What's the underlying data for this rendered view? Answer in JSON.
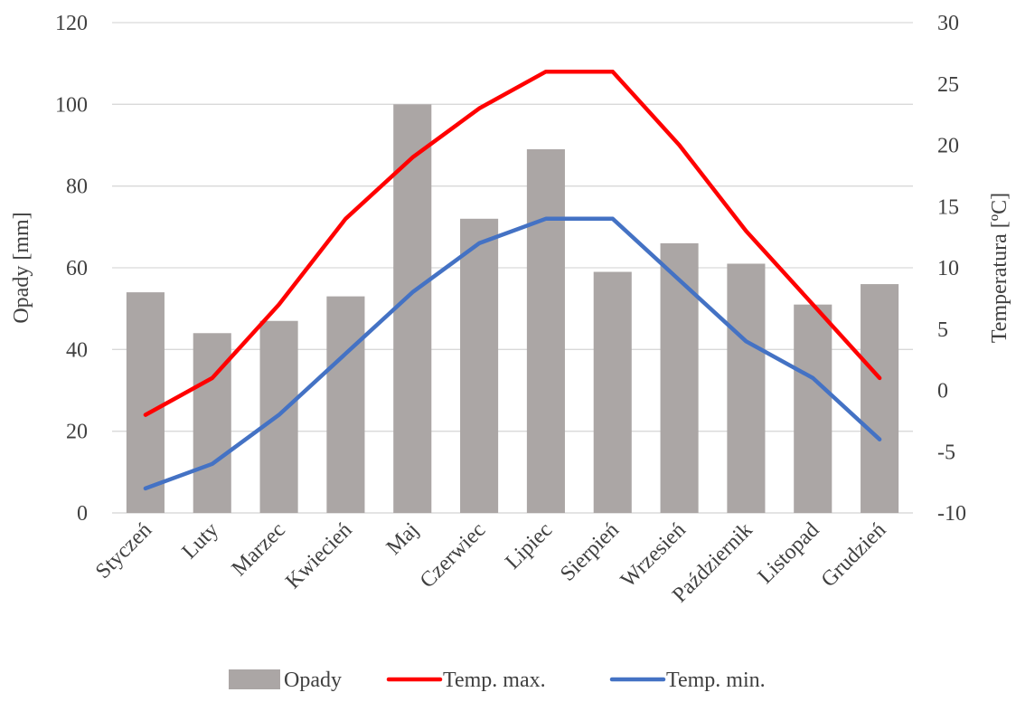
{
  "chart_data": {
    "type": "bar",
    "categories": [
      "Styczeń",
      "Luty",
      "Marzec",
      "Kwiecień",
      "Maj",
      "Czerwiec",
      "Lipiec",
      "Sierpień",
      "Wrzesień",
      "Październik",
      "Listopad",
      "Grudzień"
    ],
    "series": [
      {
        "name": "Opady",
        "type": "bar",
        "axis": "left",
        "color": "#aba6a5",
        "values": [
          54,
          44,
          47,
          53,
          100,
          72,
          89,
          59,
          66,
          61,
          51,
          56
        ]
      },
      {
        "name": "Temp. max.",
        "type": "line",
        "axis": "right",
        "color": "#ff0000",
        "values": [
          -2,
          1,
          7,
          14,
          19,
          23,
          26,
          26,
          20,
          13,
          7,
          1
        ]
      },
      {
        "name": "Temp. min.",
        "type": "line",
        "axis": "right",
        "color": "#4472c4",
        "values": [
          -8,
          -6,
          -2,
          3,
          8,
          12,
          14,
          14,
          9,
          4,
          1,
          -4
        ]
      }
    ],
    "ylabel": "Opady [mm]",
    "y2label": "Temperatura [ºC]",
    "ylim": [
      0,
      120
    ],
    "y2lim": [
      -10,
      30
    ],
    "yticks": [
      "0",
      "20",
      "40",
      "60",
      "80",
      "100",
      "120"
    ],
    "y2ticks": [
      "-10",
      "-5",
      "0",
      "5",
      "10",
      "15",
      "20",
      "25",
      "30"
    ],
    "grid": true,
    "legend_position": "bottom"
  }
}
